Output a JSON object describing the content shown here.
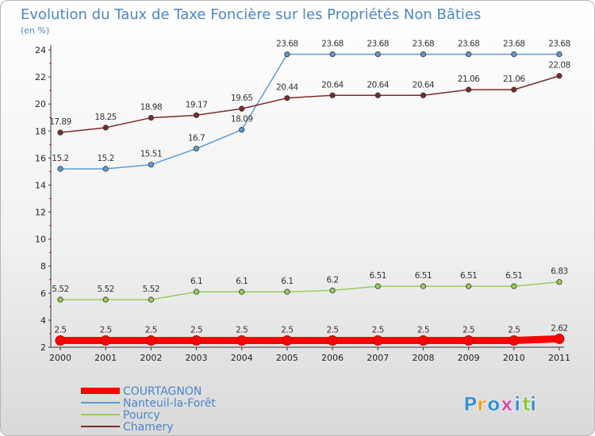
{
  "chart_data": {
    "type": "line",
    "title": "Evolution du Taux de Taxe Foncière sur les Propriétés Non Bâties",
    "subtitle": "(en %)",
    "x": [
      "2000",
      "2001",
      "2002",
      "2003",
      "2004",
      "2005",
      "2006",
      "2007",
      "2008",
      "2009",
      "2010",
      "2011"
    ],
    "ylim": [
      2,
      24
    ],
    "yticks": [
      2,
      4,
      6,
      8,
      10,
      12,
      14,
      16,
      18,
      20,
      22,
      24
    ],
    "grid": false,
    "legend_position": "bottom-left",
    "series": [
      {
        "name": "COURTAGNON",
        "color": "#ff0000",
        "values": [
          2.5,
          2.5,
          2.5,
          2.5,
          2.5,
          2.5,
          2.5,
          2.5,
          2.5,
          2.5,
          2.5,
          2.62
        ],
        "labels": [
          "2.5",
          "2.5",
          "2.5",
          "2.5",
          "2.5",
          "2.5",
          "2.5",
          "2.5",
          "2.5",
          "2.5",
          "2.5",
          "2.62"
        ]
      },
      {
        "name": "Nanteuil-la-Forêt",
        "color": "#5b9bd5",
        "values": [
          15.2,
          15.2,
          15.51,
          16.7,
          18.09,
          23.68,
          23.68,
          23.68,
          23.68,
          23.68,
          23.68,
          23.68
        ],
        "labels": [
          "15.2",
          "15.2",
          "15.51",
          "16.7",
          "18.09",
          "23.68",
          "23.68",
          "23.68",
          "23.68",
          "23.68",
          "23.68",
          "23.68"
        ]
      },
      {
        "name": "Pourcy",
        "color": "#9acd5a",
        "values": [
          5.52,
          5.52,
          5.52,
          6.1,
          6.1,
          6.1,
          6.2,
          6.51,
          6.51,
          6.51,
          6.51,
          6.83
        ],
        "labels": [
          "5.52",
          "5.52",
          "5.52",
          "6.1",
          "6.1",
          "6.1",
          "6.2",
          "6.51",
          "6.51",
          "6.51",
          "6.51",
          "6.83"
        ]
      },
      {
        "name": "Chamery",
        "color": "#7b2b2b",
        "values": [
          17.89,
          18.25,
          18.98,
          19.17,
          19.65,
          20.44,
          20.64,
          20.64,
          20.64,
          21.06,
          21.06,
          22.08
        ],
        "labels": [
          "17.89",
          "18.25",
          "18.98",
          "19.17",
          "19.65",
          "20.44",
          "20.64",
          "20.64",
          "20.64",
          "21.06",
          "21.06",
          "22.08"
        ]
      }
    ]
  },
  "brand": {
    "letters": [
      "P",
      "r",
      "o",
      "x",
      "i",
      "t",
      "i"
    ],
    "colors": [
      "#3a8fd6",
      "#f0a020",
      "#3a8fd6",
      "#d84aa0",
      "#3a8fd6",
      "#8cc63f",
      "#3a8fd6"
    ]
  }
}
